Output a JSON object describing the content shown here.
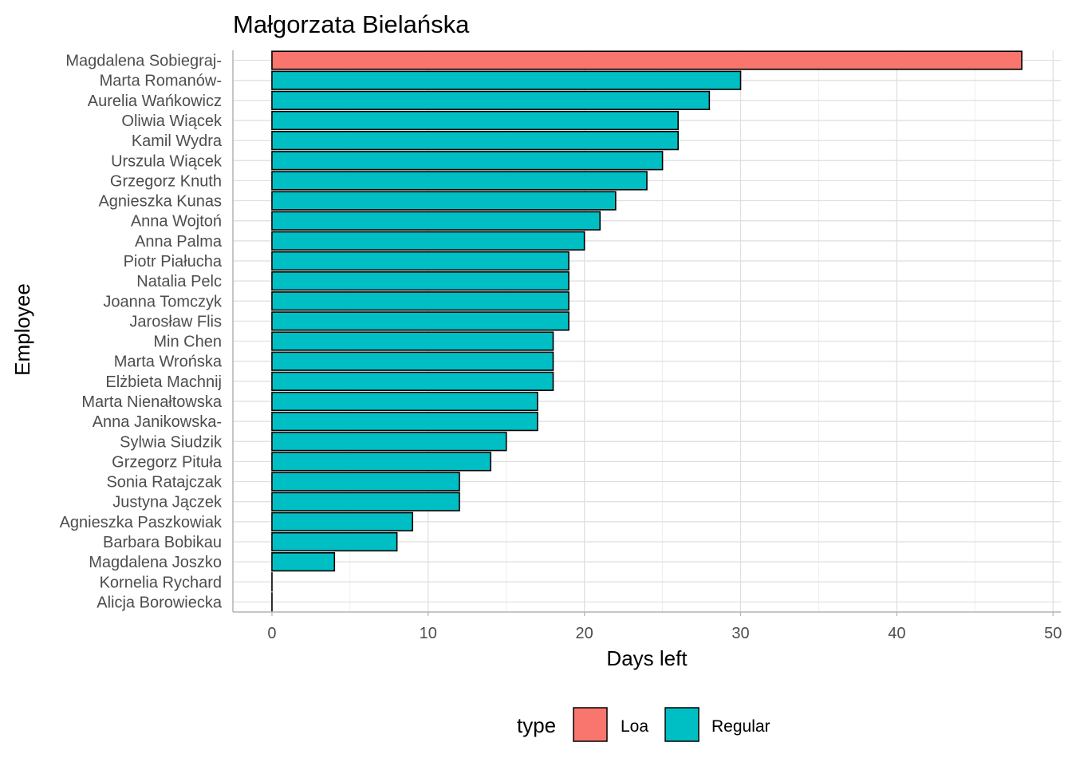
{
  "chart_data": {
    "type": "bar",
    "orientation": "horizontal",
    "title": "Małgorzata Bielańska",
    "xlabel": "Days left",
    "ylabel": "Employee",
    "xlim": [
      -2.5,
      50.5
    ],
    "xticks": [
      0,
      10,
      20,
      30,
      40,
      50
    ],
    "grid": true,
    "legend_position": "bottom",
    "legend_title": "type",
    "colors": {
      "Loa": "#F8766D",
      "Regular": "#00BFC4"
    },
    "legend": [
      {
        "label": "Loa",
        "color": "#F8766D"
      },
      {
        "label": "Regular",
        "color": "#00BFC4"
      }
    ],
    "categories": [
      "Magdalena Sobiegraj-",
      "Marta Romanów-",
      "Aurelia Wańkowicz",
      "Oliwia Wiącek",
      "Kamil Wydra",
      "Urszula Wiącek",
      "Grzegorz Knuth",
      "Agnieszka Kunas",
      "Anna Wojtoń",
      "Anna Palma",
      "Piotr Piałucha",
      "Natalia Pelc",
      "Joanna Tomczyk",
      "Jarosław Flis",
      "Min Chen",
      "Marta Wrońska",
      "Elżbieta Machnij",
      "Marta Nienałtowska",
      "Anna Janikowska-",
      "Sylwia Siudzik",
      "Grzegorz Pituła",
      "Sonia Ratajczak",
      "Justyna Jączek",
      "Agnieszka Paszkowiak",
      "Barbara Bobikau",
      "Magdalena Joszko",
      "Kornelia Rychard",
      "Alicja Borowiecka"
    ],
    "values": [
      48,
      30,
      28,
      26,
      26,
      25,
      24,
      22,
      21,
      20,
      19,
      19,
      19,
      19,
      18,
      18,
      18,
      17,
      17,
      15,
      14,
      12,
      12,
      9,
      8,
      4,
      0,
      0
    ],
    "types": [
      "Loa",
      "Regular",
      "Regular",
      "Regular",
      "Regular",
      "Regular",
      "Regular",
      "Regular",
      "Regular",
      "Regular",
      "Regular",
      "Regular",
      "Regular",
      "Regular",
      "Regular",
      "Regular",
      "Regular",
      "Regular",
      "Regular",
      "Regular",
      "Regular",
      "Regular",
      "Regular",
      "Regular",
      "Regular",
      "Regular",
      "Regular",
      "Regular"
    ]
  }
}
